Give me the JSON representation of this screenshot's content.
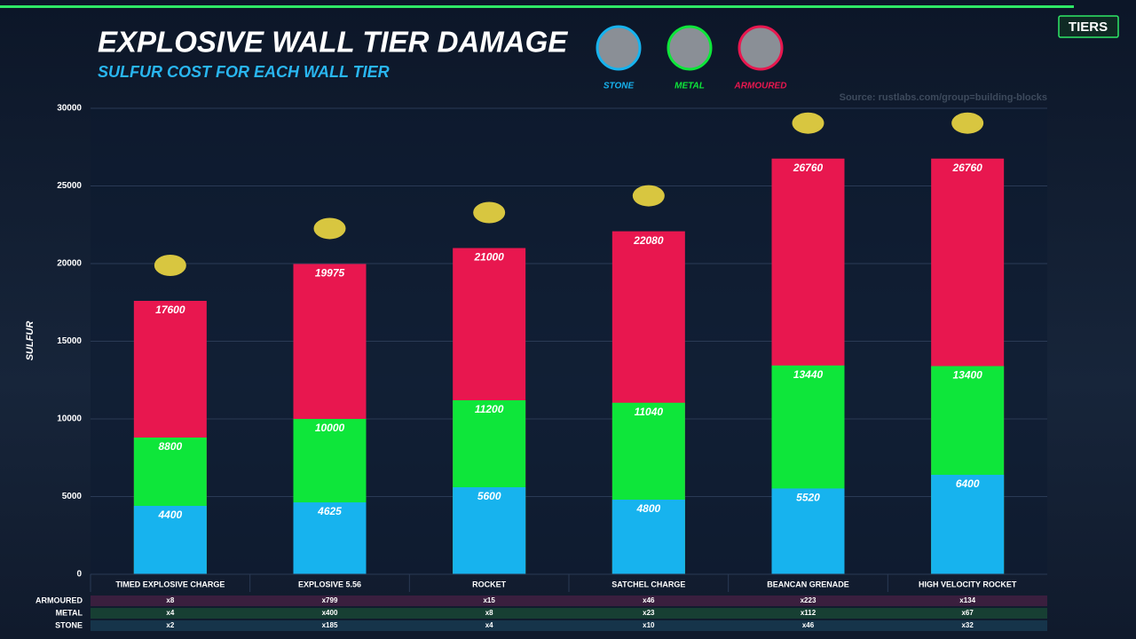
{
  "chart_data": {
    "type": "bar",
    "title": "EXPLOSIVE WALL TIER DAMAGE",
    "subtitle": "SULFUR COST FOR EACH WALL TIER",
    "badge": "TIERS",
    "source": "Source: rustlabs.com/group=building-blocks",
    "ylabel": "SULFUR",
    "categories": [
      "TIMED EXPLOSIVE CHARGE",
      "EXPLOSIVE 5.56",
      "ROCKET",
      "SATCHEL CHARGE",
      "BEANCAN GRENADE",
      "HIGH VELOCITY ROCKET"
    ],
    "series": [
      {
        "name": "ARMOURED",
        "color": "#e8174f",
        "values": [
          17600,
          19975,
          21000,
          22080,
          26760,
          26760
        ]
      },
      {
        "name": "METAL",
        "color": "#0ee63a",
        "values": [
          8800,
          10000,
          11200,
          11040,
          13440,
          13400
        ]
      },
      {
        "name": "STONE",
        "color": "#17b3ee",
        "values": [
          4400,
          4625,
          5600,
          4800,
          5520,
          6400
        ]
      }
    ],
    "ylim": [
      0,
      30000
    ],
    "yticks": [
      0,
      5000,
      10000,
      15000,
      20000,
      25000,
      30000
    ],
    "grid": true,
    "table": {
      "rows": [
        {
          "name": "ARMOURED",
          "color": "#3a1f3e",
          "cells": [
            "x8",
            "x799",
            "x15",
            "x46",
            "x223",
            "x134"
          ]
        },
        {
          "name": "METAL",
          "color": "#173f33",
          "cells": [
            "x4",
            "x400",
            "x8",
            "x23",
            "x112",
            "x67"
          ]
        },
        {
          "name": "STONE",
          "color": "#16344a",
          "cells": [
            "x2",
            "x185",
            "x4",
            "x10",
            "x46",
            "x32"
          ]
        }
      ]
    }
  }
}
